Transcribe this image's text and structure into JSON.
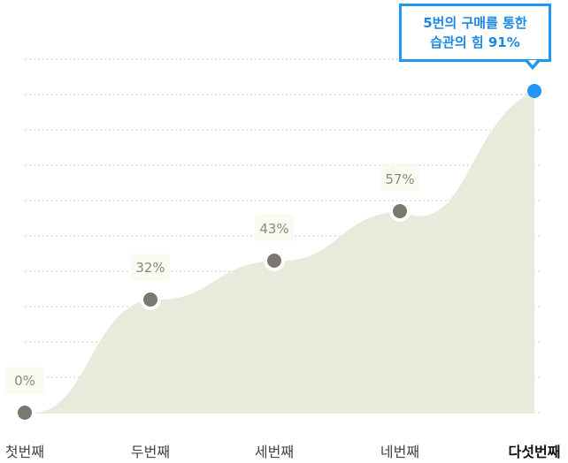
{
  "chart_data": {
    "type": "area",
    "categories": [
      "첫번째",
      "두번째",
      "세번째",
      "네번째",
      "다섯번째"
    ],
    "values": [
      0,
      32,
      43,
      57,
      91
    ],
    "data_labels": [
      "0%",
      "32%",
      "43%",
      "57%",
      ""
    ],
    "ylim": [
      0,
      100
    ],
    "grid": true,
    "highlight_index": 4,
    "colors": {
      "area": "#e9e9dc",
      "point": "#7b786f",
      "highlight": "#2196f3",
      "grid": "#c9c9c9"
    }
  },
  "callout": {
    "line1": "5번의 구매를 통한",
    "line2": "습관의 힘 91%"
  }
}
